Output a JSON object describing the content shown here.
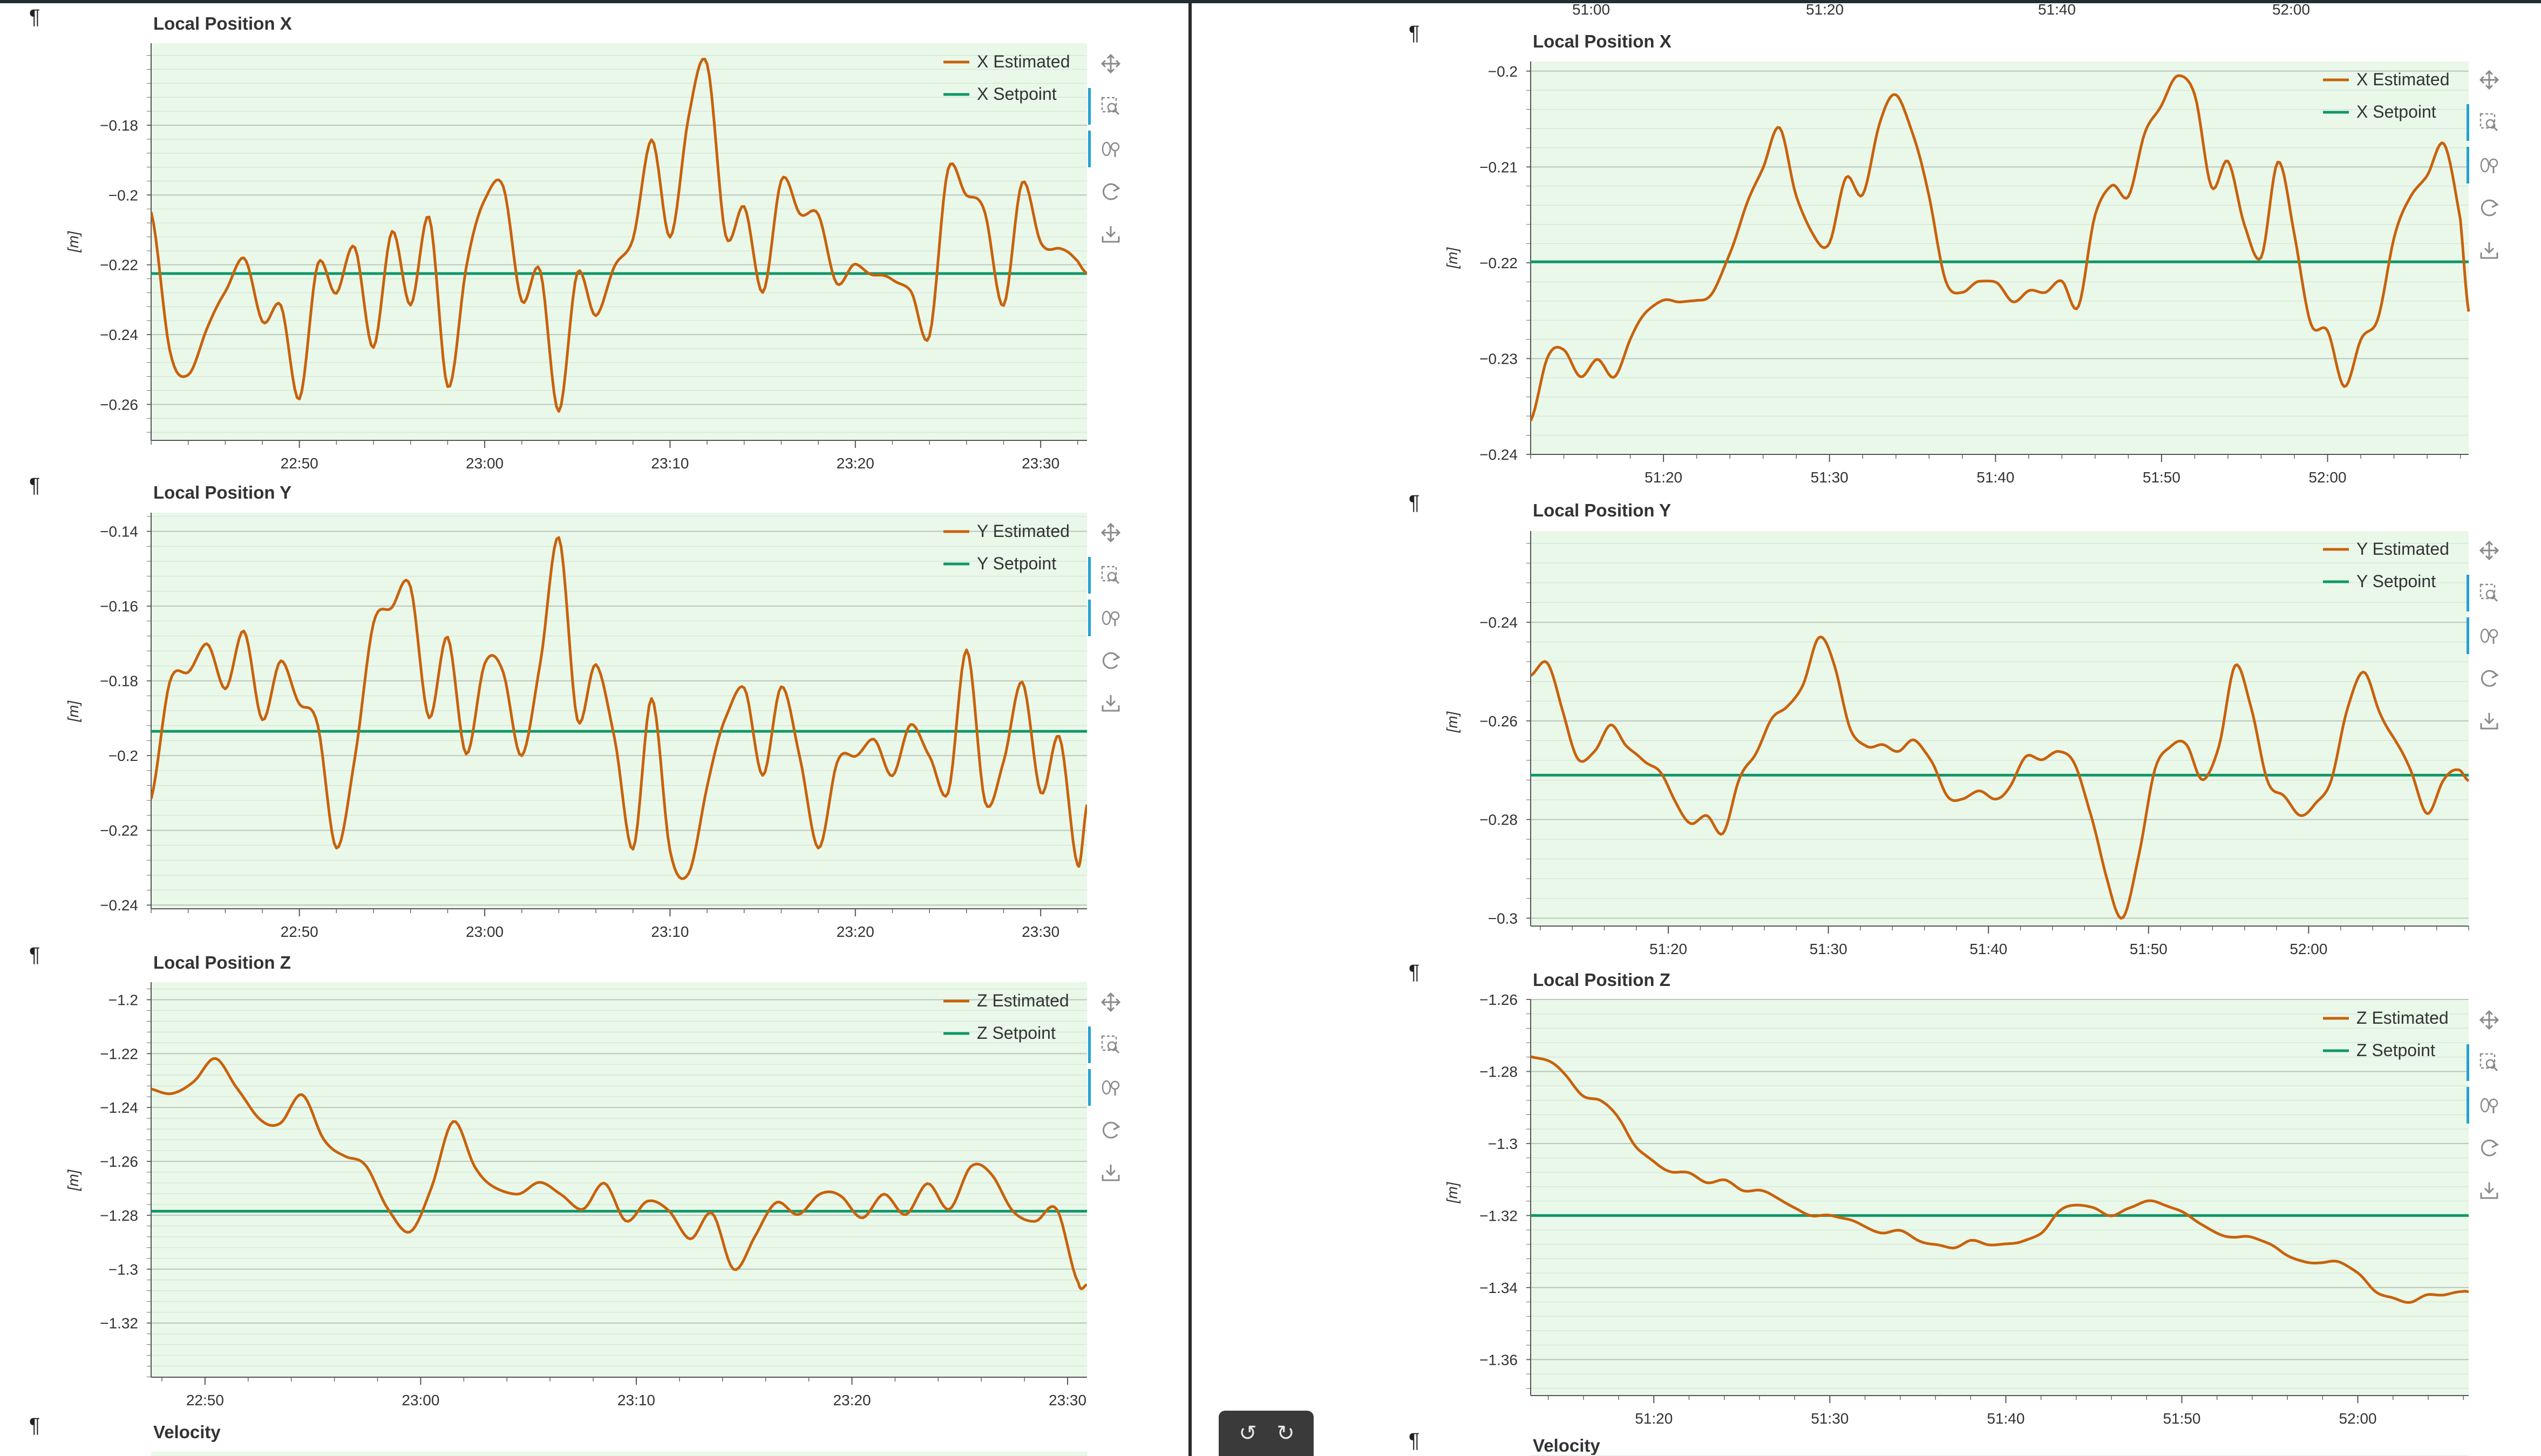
{
  "page": {
    "pilcrow": "¶",
    "top_axis_ticks": [
      "51:00",
      "51:20",
      "51:40",
      "52:00"
    ]
  },
  "colors": {
    "estimated": "#c8620c",
    "setpoint": "#10976a",
    "plot_bg": "#e9f8e9",
    "grid": "#c5d2c9",
    "toolbar_active": "#26a1d1"
  },
  "toolbar": {
    "tools": [
      {
        "name": "pan-tool-icon",
        "active": false
      },
      {
        "name": "box-zoom-icon",
        "active": true
      },
      {
        "name": "wheel-zoom-icon",
        "active": true
      },
      {
        "name": "reset-icon",
        "active": false
      },
      {
        "name": "save-icon",
        "active": false
      }
    ]
  },
  "floating_controls": {
    "undo": "undo-icon",
    "redo": "redo-icon"
  },
  "chart_data": [
    {
      "type": "line",
      "title": "Local Position X",
      "ylabel": "[m]",
      "x_ticks": [
        "22:50",
        "23:00",
        "23:10",
        "23:20",
        "23:30"
      ],
      "x_tick_times_s": [
        1370,
        1380,
        1390,
        1400,
        1410
      ],
      "x_range_s": [
        1362.0,
        1412.5
      ],
      "y_ticks": [
        "−0.18",
        "−0.2",
        "−0.22",
        "−0.24",
        "−0.26"
      ],
      "ylim": [
        -0.2703,
        -0.1565
      ],
      "series": [
        {
          "name": "X Estimated",
          "role": "estimated",
          "noise": 1.0,
          "x": [
            1362,
            1363,
            1364,
            1365,
            1366,
            1367,
            1368,
            1369,
            1370,
            1371,
            1372,
            1373,
            1374,
            1375,
            1376,
            1377,
            1378,
            1379,
            1380,
            1381,
            1382,
            1383,
            1384,
            1385,
            1386,
            1387,
            1388,
            1389,
            1390,
            1391,
            1392,
            1393,
            1394,
            1395,
            1396,
            1397,
            1398,
            1399,
            1400,
            1401,
            1402,
            1403,
            1404,
            1405,
            1406,
            1407,
            1408,
            1409,
            1410,
            1411,
            1412,
            1412.5
          ],
          "y": [
            -0.205,
            -0.244,
            -0.252,
            -0.238,
            -0.228,
            -0.218,
            -0.236,
            -0.232,
            -0.258,
            -0.22,
            -0.228,
            -0.215,
            -0.244,
            -0.21,
            -0.232,
            -0.206,
            -0.255,
            -0.221,
            -0.201,
            -0.198,
            -0.23,
            -0.222,
            -0.262,
            -0.222,
            -0.235,
            -0.22,
            -0.213,
            -0.184,
            -0.212,
            -0.178,
            -0.162,
            -0.212,
            -0.203,
            -0.228,
            -0.196,
            -0.205,
            -0.206,
            -0.225,
            -0.22,
            -0.223,
            -0.224,
            -0.228,
            -0.24,
            -0.193,
            -0.2,
            -0.205,
            -0.232,
            -0.196,
            -0.214,
            -0.215,
            -0.219,
            -0.222
          ]
        },
        {
          "name": "X Setpoint",
          "role": "setpoint",
          "x": [
            1362,
            1412.5
          ],
          "y": [
            -0.2225,
            -0.2225
          ]
        }
      ]
    },
    {
      "type": "line",
      "title": "Local Position Y",
      "ylabel": "[m]",
      "x_ticks": [
        "22:50",
        "23:00",
        "23:10",
        "23:20",
        "23:30"
      ],
      "x_tick_times_s": [
        1370,
        1380,
        1390,
        1400,
        1410
      ],
      "x_range_s": [
        1362.0,
        1412.5
      ],
      "y_ticks": [
        "−0.14",
        "−0.16",
        "−0.18",
        "−0.2",
        "−0.22",
        "−0.24"
      ],
      "ylim": [
        -0.241,
        -0.135
      ],
      "series": [
        {
          "name": "Y Estimated",
          "role": "estimated",
          "noise": 1.0,
          "x": [
            1362,
            1363,
            1364,
            1365,
            1366,
            1367,
            1368,
            1369,
            1370,
            1371,
            1372,
            1373,
            1374,
            1375,
            1376,
            1377,
            1378,
            1379,
            1380,
            1381,
            1382,
            1383,
            1384,
            1385,
            1386,
            1387,
            1388,
            1389,
            1390,
            1391,
            1392,
            1393,
            1394,
            1395,
            1396,
            1397,
            1398,
            1399,
            1400,
            1401,
            1402,
            1403,
            1404,
            1405,
            1406,
            1407,
            1408,
            1409,
            1410,
            1411,
            1412,
            1412.5
          ],
          "y": [
            -0.212,
            -0.18,
            -0.178,
            -0.17,
            -0.182,
            -0.167,
            -0.19,
            -0.175,
            -0.186,
            -0.192,
            -0.225,
            -0.2,
            -0.165,
            -0.16,
            -0.155,
            -0.19,
            -0.168,
            -0.2,
            -0.175,
            -0.178,
            -0.2,
            -0.175,
            -0.142,
            -0.19,
            -0.176,
            -0.195,
            -0.225,
            -0.185,
            -0.225,
            -0.232,
            -0.208,
            -0.19,
            -0.182,
            -0.205,
            -0.182,
            -0.2,
            -0.225,
            -0.202,
            -0.2,
            -0.196,
            -0.205,
            -0.192,
            -0.2,
            -0.21,
            -0.172,
            -0.212,
            -0.202,
            -0.18,
            -0.21,
            -0.195,
            -0.229,
            -0.213
          ]
        },
        {
          "name": "Y Setpoint",
          "role": "setpoint",
          "x": [
            1362,
            1412.5
          ],
          "y": [
            -0.1935,
            -0.1935
          ]
        }
      ]
    },
    {
      "type": "line",
      "title": "Local Position Z",
      "ylabel": "[m]",
      "x_ticks": [
        "22:50",
        "23:00",
        "23:10",
        "23:20",
        "23:30"
      ],
      "x_tick_times_s": [
        1370,
        1380,
        1390,
        1400,
        1410
      ],
      "x_range_s": [
        1367.5,
        1410.9
      ],
      "y_ticks": [
        "−1.2",
        "−1.22",
        "−1.24",
        "−1.26",
        "−1.28",
        "−1.3",
        "−1.32"
      ],
      "ylim": [
        -1.3401,
        -1.1935
      ],
      "series": [
        {
          "name": "Z Estimated",
          "role": "estimated",
          "noise": 0.4,
          "x": [
            1367.5,
            1368.5,
            1369.5,
            1370.5,
            1371.5,
            1372.5,
            1373.5,
            1374.5,
            1375.5,
            1376.5,
            1377.5,
            1378.5,
            1379.5,
            1380.5,
            1381.5,
            1382.5,
            1383.5,
            1384.5,
            1385.5,
            1386.5,
            1387.5,
            1388.5,
            1389.5,
            1390.5,
            1391.5,
            1392.5,
            1393.5,
            1394.5,
            1395.5,
            1396.5,
            1397.5,
            1398.5,
            1399.5,
            1400.5,
            1401.5,
            1402.5,
            1403.5,
            1404.5,
            1405.5,
            1406.5,
            1407.5,
            1408.5,
            1409.5,
            1410.5,
            1410.9
          ],
          "y": [
            -1.233,
            -1.235,
            -1.23,
            -1.222,
            -1.233,
            -1.244,
            -1.246,
            -1.235,
            -1.252,
            -1.258,
            -1.262,
            -1.278,
            -1.286,
            -1.27,
            -1.245,
            -1.262,
            -1.27,
            -1.272,
            -1.268,
            -1.272,
            -1.278,
            -1.268,
            -1.282,
            -1.275,
            -1.278,
            -1.289,
            -1.279,
            -1.3,
            -1.288,
            -1.275,
            -1.28,
            -1.272,
            -1.273,
            -1.281,
            -1.272,
            -1.28,
            -1.268,
            -1.278,
            -1.262,
            -1.265,
            -1.279,
            -1.282,
            -1.278,
            -1.305,
            -1.306
          ]
        },
        {
          "name": "Z Setpoint",
          "role": "setpoint",
          "x": [
            1367.5,
            1410.9
          ],
          "y": [
            -1.2785,
            -1.2785
          ]
        }
      ]
    },
    {
      "type": "line",
      "title": "Local Position X",
      "ylabel": "[m]",
      "x_ticks": [
        "51:20",
        "51:30",
        "51:40",
        "51:50",
        "52:00"
      ],
      "x_tick_times_s": [
        3080,
        3090,
        3100,
        3110,
        3120
      ],
      "x_range_s": [
        3072.0,
        3128.5
      ],
      "y_ticks": [
        "−0.2",
        "−0.21",
        "−0.22",
        "−0.23",
        "−0.24"
      ],
      "ylim": [
        -0.24,
        -0.199
      ],
      "series": [
        {
          "name": "X Estimated",
          "role": "estimated",
          "noise": 0.6,
          "x": [
            3072,
            3073,
            3074,
            3075,
            3076,
            3077,
            3078,
            3079,
            3080,
            3081,
            3082,
            3083,
            3084,
            3085,
            3086,
            3087,
            3088,
            3089,
            3090,
            3091,
            3092,
            3093,
            3094,
            3095,
            3096,
            3097,
            3098,
            3099,
            3100,
            3101,
            3102,
            3103,
            3104,
            3105,
            3106,
            3107,
            3108,
            3109,
            3110,
            3111,
            3112,
            3113,
            3114,
            3115,
            3116,
            3117,
            3118,
            3119,
            3120,
            3121,
            3122,
            3123,
            3124,
            3125,
            3126,
            3127,
            3128,
            3128.5
          ],
          "y": [
            -0.2365,
            -0.23,
            -0.229,
            -0.232,
            -0.23,
            -0.232,
            -0.228,
            -0.225,
            -0.224,
            -0.224,
            -0.224,
            -0.223,
            -0.219,
            -0.214,
            -0.21,
            -0.206,
            -0.213,
            -0.217,
            -0.218,
            -0.211,
            -0.213,
            -0.2055,
            -0.2025,
            -0.2065,
            -0.213,
            -0.222,
            -0.223,
            -0.222,
            -0.222,
            -0.224,
            -0.223,
            -0.223,
            -0.222,
            -0.2245,
            -0.215,
            -0.212,
            -0.213,
            -0.2065,
            -0.2035,
            -0.2005,
            -0.2025,
            -0.212,
            -0.2095,
            -0.216,
            -0.2195,
            -0.2095,
            -0.217,
            -0.2265,
            -0.227,
            -0.233,
            -0.228,
            -0.226,
            -0.2175,
            -0.213,
            -0.211,
            -0.2075,
            -0.2155,
            -0.225
          ]
        },
        {
          "name": "X Setpoint",
          "role": "setpoint",
          "x": [
            3072,
            3128.5
          ],
          "y": [
            -0.2199,
            -0.2199
          ]
        }
      ]
    },
    {
      "type": "line",
      "title": "Local Position Y",
      "ylabel": "[m]",
      "x_ticks": [
        "51:20",
        "51:30",
        "51:40",
        "51:50",
        "52:00"
      ],
      "x_tick_times_s": [
        3080,
        3090,
        3100,
        3110,
        3120
      ],
      "x_range_s": [
        3071.4,
        3130.0
      ],
      "y_ticks": [
        "−0.24",
        "−0.26",
        "−0.28",
        "−0.3"
      ],
      "ylim": [
        -0.3016,
        -0.2215
      ],
      "series": [
        {
          "name": "Y Estimated",
          "role": "estimated",
          "noise": 0.6,
          "x": [
            3071.4,
            3072.4,
            3073.4,
            3074.4,
            3075.4,
            3076.4,
            3077.4,
            3078.4,
            3079.4,
            3080.4,
            3081.4,
            3082.4,
            3083.4,
            3084.4,
            3085.4,
            3086.4,
            3087.4,
            3088.4,
            3089.4,
            3090.4,
            3091.4,
            3092.4,
            3093.4,
            3094.4,
            3095.4,
            3096.4,
            3097.4,
            3098.4,
            3099.4,
            3100.4,
            3101.4,
            3102.4,
            3103.4,
            3104.4,
            3105.4,
            3106.4,
            3107.4,
            3108.4,
            3109.4,
            3110.4,
            3111.4,
            3112.4,
            3113.4,
            3114.4,
            3115.4,
            3116.4,
            3117.4,
            3118.4,
            3119.4,
            3120.4,
            3121.4,
            3122.4,
            3123.4,
            3124.4,
            3125.4,
            3126.4,
            3127.4,
            3128.4,
            3129.4,
            3130.0
          ],
          "y": [
            -0.251,
            -0.248,
            -0.258,
            -0.268,
            -0.266,
            -0.261,
            -0.265,
            -0.268,
            -0.27,
            -0.276,
            -0.281,
            -0.279,
            -0.283,
            -0.272,
            -0.267,
            -0.26,
            -0.257,
            -0.253,
            -0.243,
            -0.249,
            -0.262,
            -0.265,
            -0.265,
            -0.266,
            -0.264,
            -0.268,
            -0.275,
            -0.276,
            -0.274,
            -0.276,
            -0.273,
            -0.267,
            -0.268,
            -0.266,
            -0.269,
            -0.279,
            -0.292,
            -0.3,
            -0.287,
            -0.27,
            -0.265,
            -0.265,
            -0.272,
            -0.265,
            -0.249,
            -0.257,
            -0.272,
            -0.275,
            -0.279,
            -0.277,
            -0.272,
            -0.258,
            -0.25,
            -0.258,
            -0.264,
            -0.27,
            -0.279,
            -0.272,
            -0.27,
            -0.272
          ]
        },
        {
          "name": "Y Setpoint",
          "role": "setpoint",
          "x": [
            3071.4,
            3130.0
          ],
          "y": [
            -0.271,
            -0.271
          ]
        }
      ]
    },
    {
      "type": "line",
      "title": "Local Position Z",
      "ylabel": "[m]",
      "x_ticks": [
        "51:20",
        "51:30",
        "51:40",
        "51:50",
        "52:00"
      ],
      "x_tick_times_s": [
        3080,
        3090,
        3100,
        3110,
        3120
      ],
      "x_range_s": [
        3073.0,
        3126.3
      ],
      "y_ticks": [
        "−1.26",
        "−1.28",
        "−1.3",
        "−1.32",
        "−1.34",
        "−1.36"
      ],
      "ylim": [
        -1.37,
        -1.26
      ],
      "series": [
        {
          "name": "Z Estimated",
          "role": "estimated",
          "noise": 0.3,
          "x": [
            3073,
            3074,
            3075,
            3076,
            3077,
            3078,
            3079,
            3080,
            3081,
            3082,
            3083,
            3084,
            3085,
            3086,
            3087,
            3088,
            3089,
            3090,
            3091,
            3092,
            3093,
            3094,
            3095,
            3096,
            3097,
            3098,
            3099,
            3100,
            3101,
            3102,
            3103,
            3104,
            3105,
            3106,
            3107,
            3108,
            3109,
            3110,
            3111,
            3112,
            3113,
            3114,
            3115,
            3116,
            3117,
            3118,
            3119,
            3120,
            3121,
            3122,
            3123,
            3124,
            3125,
            3126,
            3126.3
          ],
          "y": [
            -1.276,
            -1.277,
            -1.281,
            -1.287,
            -1.288,
            -1.293,
            -1.301,
            -1.305,
            -1.308,
            -1.308,
            -1.311,
            -1.31,
            -1.313,
            -1.313,
            -1.315,
            -1.318,
            -1.32,
            -1.32,
            -1.321,
            -1.323,
            -1.325,
            -1.324,
            -1.327,
            -1.328,
            -1.329,
            -1.327,
            -1.328,
            -1.328,
            -1.327,
            -1.325,
            -1.319,
            -1.317,
            -1.318,
            -1.32,
            -1.318,
            -1.316,
            -1.317,
            -1.319,
            -1.322,
            -1.325,
            -1.326,
            -1.326,
            -1.328,
            -1.331,
            -1.333,
            -1.333,
            -1.333,
            -1.336,
            -1.341,
            -1.343,
            -1.344,
            -1.342,
            -1.342,
            -1.341,
            -1.341
          ]
        },
        {
          "name": "Z Setpoint",
          "role": "setpoint",
          "x": [
            3073.0,
            3126.3
          ],
          "y": [
            -1.32,
            -1.32
          ]
        }
      ]
    },
    {
      "type": "line",
      "title": "Velocity",
      "partial": true
    },
    {
      "type": "line",
      "title": "Velocity",
      "partial": true
    }
  ]
}
